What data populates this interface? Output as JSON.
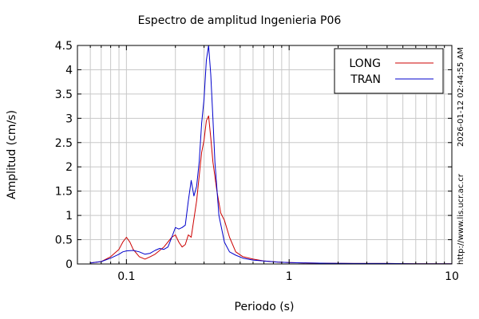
{
  "chart_data": {
    "type": "line",
    "title": "Espectro de amplitud Ingenieria P06",
    "xlabel": "Periodo (s)",
    "ylabel": "Amplitud (cm/s)",
    "xscale": "log",
    "xlim": [
      0.05,
      10
    ],
    "ylim": [
      0,
      4.5
    ],
    "x_ticks": [
      {
        "value": 0.1,
        "label": "0.1"
      },
      {
        "value": 1,
        "label": "1"
      },
      {
        "value": 10,
        "label": "10"
      }
    ],
    "y_ticks": [
      {
        "value": 0,
        "label": "0"
      },
      {
        "value": 0.5,
        "label": "0.5"
      },
      {
        "value": 1,
        "label": "1"
      },
      {
        "value": 1.5,
        "label": "1.5"
      },
      {
        "value": 2,
        "label": "2"
      },
      {
        "value": 2.5,
        "label": "2.5"
      },
      {
        "value": 3,
        "label": "3"
      },
      {
        "value": 3.5,
        "label": "3.5"
      },
      {
        "value": 4,
        "label": "4"
      },
      {
        "value": 4.5,
        "label": "4.5"
      }
    ],
    "grid": true,
    "legend_position": "top-right",
    "series": [
      {
        "name": "LONG",
        "color": "#cc0000",
        "x": [
          0.06,
          0.07,
          0.08,
          0.09,
          0.095,
          0.1,
          0.105,
          0.11,
          0.12,
          0.13,
          0.14,
          0.15,
          0.17,
          0.19,
          0.2,
          0.21,
          0.22,
          0.23,
          0.24,
          0.25,
          0.27,
          0.29,
          0.3,
          0.31,
          0.32,
          0.33,
          0.34,
          0.36,
          0.38,
          0.4,
          0.43,
          0.47,
          0.52,
          0.6,
          0.7,
          0.85,
          1,
          1.3,
          1.7,
          2.5,
          4,
          6,
          10
        ],
        "y": [
          0.02,
          0.05,
          0.15,
          0.3,
          0.45,
          0.55,
          0.45,
          0.3,
          0.15,
          0.1,
          0.15,
          0.2,
          0.35,
          0.55,
          0.6,
          0.45,
          0.35,
          0.4,
          0.6,
          0.55,
          1.3,
          2.3,
          2.55,
          2.95,
          3.05,
          2.6,
          2.1,
          1.5,
          1.05,
          0.9,
          0.55,
          0.25,
          0.15,
          0.1,
          0.06,
          0.04,
          0.03,
          0.02,
          0.015,
          0.01,
          0.01,
          0.005,
          0.005
        ]
      },
      {
        "name": "TRAN",
        "color": "#0000cc",
        "x": [
          0.06,
          0.07,
          0.08,
          0.09,
          0.095,
          0.1,
          0.11,
          0.12,
          0.13,
          0.14,
          0.15,
          0.16,
          0.17,
          0.18,
          0.19,
          0.2,
          0.21,
          0.22,
          0.23,
          0.24,
          0.25,
          0.26,
          0.27,
          0.28,
          0.29,
          0.3,
          0.31,
          0.32,
          0.33,
          0.34,
          0.35,
          0.37,
          0.4,
          0.43,
          0.47,
          0.52,
          0.6,
          0.7,
          0.85,
          1,
          1.3,
          1.7,
          2.5,
          4,
          6,
          10
        ],
        "y": [
          0.02,
          0.05,
          0.12,
          0.2,
          0.25,
          0.27,
          0.28,
          0.25,
          0.2,
          0.22,
          0.28,
          0.32,
          0.3,
          0.35,
          0.55,
          0.75,
          0.72,
          0.75,
          0.8,
          1.3,
          1.72,
          1.4,
          1.6,
          2.1,
          2.9,
          3.4,
          4.2,
          4.5,
          3.9,
          3.0,
          2.1,
          1.0,
          0.45,
          0.25,
          0.18,
          0.12,
          0.08,
          0.06,
          0.04,
          0.03,
          0.02,
          0.015,
          0.01,
          0.01,
          0.005,
          0.005
        ]
      }
    ]
  },
  "side_text": {
    "timestamp": "2026-01-12 02:44:55 AM",
    "url": "http://www.lis.ucr.ac.cr"
  }
}
